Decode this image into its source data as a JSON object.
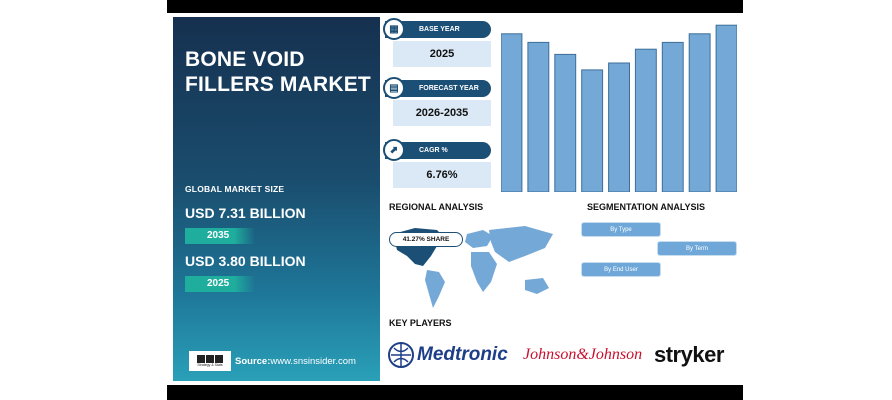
{
  "title": "BONE VOID FILLERS MARKET",
  "global_market_size": {
    "label": "GLOBAL MARKET SIZE",
    "value_2035": "USD 7.31 BILLION",
    "year_2035": "2035",
    "value_2025": "USD 3.80 BILLION",
    "year_2025": "2025"
  },
  "source": {
    "prefix": "Source:",
    "url": "www.snsinsider.com",
    "logo_text": "Strategy & Stats"
  },
  "info_boxes": [
    {
      "label": "BASE YEAR",
      "value": "2025",
      "icon": "calendar-icon"
    },
    {
      "label": "FORECAST YEAR",
      "value": "2026-2035",
      "icon": "chart-icon"
    },
    {
      "label": "CAGR %",
      "value": "6.76%",
      "icon": "growth-icon"
    }
  ],
  "chart_data": {
    "type": "bar",
    "values": [
      0.92,
      0.87,
      0.8,
      0.71,
      0.75,
      0.83,
      0.87,
      0.92,
      0.97
    ],
    "color": "#74a8d6"
  },
  "regional": {
    "title": "REGIONAL ANALYSIS",
    "share": "41.27% SHARE"
  },
  "segmentation": {
    "title": "SEGMENTATION ANALYSIS",
    "items": [
      "By Type",
      "By Term",
      "By End User"
    ]
  },
  "key_players": {
    "title": "KEY PLAYERS",
    "players": [
      "Medtronic",
      "Johnson&Johnson",
      "stryker"
    ]
  },
  "colors": {
    "navy": "#1c4f75",
    "teal": "#1fae9d",
    "bar": "#74a8d6",
    "segment": "#6fa8d8"
  }
}
